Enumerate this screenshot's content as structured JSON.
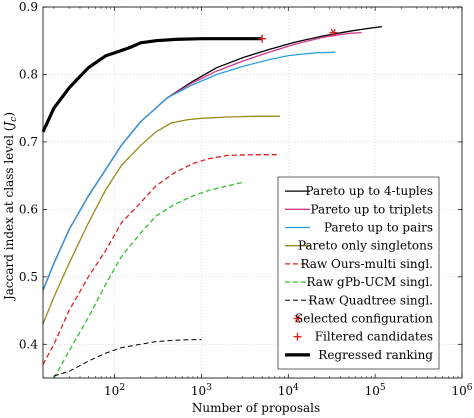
{
  "chart_data": {
    "type": "line",
    "title": "",
    "xlabel": "Number of proposals",
    "ylabel": "Jaccard index at class level (J_c)",
    "x_scale": "log",
    "xlim": [
      15,
      1000000
    ],
    "ylim": [
      0.35,
      0.9
    ],
    "x_ticks": [
      {
        "value": 100,
        "base": "10",
        "exp": "2"
      },
      {
        "value": 1000,
        "base": "10",
        "exp": "3"
      },
      {
        "value": 10000,
        "base": "10",
        "exp": "4"
      },
      {
        "value": 100000,
        "base": "10",
        "exp": "5"
      },
      {
        "value": 1000000,
        "base": "10",
        "exp": "6"
      }
    ],
    "y_ticks": [
      {
        "value": 0.4,
        "label": "0.4"
      },
      {
        "value": 0.5,
        "label": "0.5"
      },
      {
        "value": 0.6,
        "label": "0.6"
      },
      {
        "value": 0.7,
        "label": "0.7"
      },
      {
        "value": 0.8,
        "label": "0.8"
      },
      {
        "value": 0.9,
        "label": "0.9"
      }
    ],
    "grid": true,
    "legend_position": "bottom-right",
    "series": [
      {
        "name": "Pareto up to 4-tuples",
        "color": "#000000",
        "style": "solid",
        "width": 1.3,
        "x": [
          15,
          20,
          30,
          50,
          80,
          120,
          200,
          400,
          800,
          1500,
          3000,
          6000,
          12000,
          25000,
          50000,
          80000,
          120000
        ],
        "y": [
          0.48,
          0.52,
          0.57,
          0.62,
          0.66,
          0.695,
          0.73,
          0.765,
          0.79,
          0.81,
          0.825,
          0.837,
          0.848,
          0.857,
          0.864,
          0.868,
          0.871
        ]
      },
      {
        "name": "Pareto up to triplets",
        "color": "#d4388f",
        "style": "solid",
        "width": 1.3,
        "x": [
          15,
          20,
          30,
          50,
          80,
          120,
          200,
          400,
          800,
          1500,
          3000,
          6000,
          12000,
          25000,
          50000,
          70000
        ],
        "y": [
          0.48,
          0.52,
          0.57,
          0.62,
          0.66,
          0.695,
          0.73,
          0.765,
          0.788,
          0.805,
          0.82,
          0.833,
          0.845,
          0.855,
          0.861,
          0.862
        ]
      },
      {
        "name": "Pareto up to pairs",
        "color": "#2a9fe0",
        "style": "solid",
        "width": 1.3,
        "x": [
          15,
          20,
          30,
          50,
          80,
          120,
          200,
          400,
          800,
          1500,
          3000,
          6000,
          10000,
          20000,
          35000
        ],
        "y": [
          0.48,
          0.52,
          0.57,
          0.62,
          0.66,
          0.695,
          0.73,
          0.765,
          0.785,
          0.8,
          0.812,
          0.822,
          0.828,
          0.832,
          0.833
        ]
      },
      {
        "name": "Pareto only singletons",
        "color": "#9a8a1a",
        "style": "solid",
        "width": 1.3,
        "x": [
          15,
          20,
          30,
          50,
          80,
          120,
          200,
          300,
          450,
          700,
          1000,
          2000,
          4000,
          8000
        ],
        "y": [
          0.43,
          0.47,
          0.52,
          0.58,
          0.63,
          0.665,
          0.695,
          0.715,
          0.728,
          0.733,
          0.735,
          0.737,
          0.738,
          0.738
        ]
      },
      {
        "name": "Raw Ours-multi singl.",
        "color": "#e02020",
        "style": "dashed",
        "width": 1.3,
        "x": [
          15,
          20,
          30,
          50,
          80,
          120,
          200,
          300,
          500,
          800,
          1200,
          2000,
          4000,
          8000
        ],
        "y": [
          0.37,
          0.4,
          0.45,
          0.5,
          0.54,
          0.58,
          0.61,
          0.635,
          0.655,
          0.668,
          0.675,
          0.68,
          0.681,
          0.681
        ]
      },
      {
        "name": "Raw gPb-UCM singl.",
        "color": "#30c030",
        "style": "dashed",
        "width": 1.3,
        "x": [
          20,
          30,
          50,
          80,
          120,
          200,
          300,
          500,
          800,
          1200,
          2000,
          3000
        ],
        "y": [
          0.35,
          0.39,
          0.44,
          0.49,
          0.53,
          0.565,
          0.59,
          0.608,
          0.62,
          0.628,
          0.635,
          0.64
        ]
      },
      {
        "name": "Raw Quadtree singl.",
        "color": "#000000",
        "style": "dashed",
        "width": 1.0,
        "x": [
          20,
          30,
          50,
          80,
          120,
          200,
          300,
          500,
          800,
          1000
        ],
        "y": [
          0.353,
          0.36,
          0.375,
          0.387,
          0.395,
          0.4,
          0.404,
          0.406,
          0.407,
          0.407
        ]
      },
      {
        "name": "Regressed ranking",
        "color": "#000000",
        "style": "solid",
        "width": 3.2,
        "x": [
          15,
          20,
          30,
          50,
          80,
          100,
          150,
          200,
          300,
          500,
          1000,
          2000,
          5000
        ],
        "y": [
          0.715,
          0.75,
          0.78,
          0.81,
          0.828,
          0.832,
          0.84,
          0.847,
          0.85,
          0.852,
          0.853,
          0.853,
          0.853
        ]
      }
    ],
    "markers": [
      {
        "name": "Selected configuration",
        "symbol": "*",
        "color": "#e02020",
        "x": 33000,
        "y": 0.862
      },
      {
        "name": "Filtered candidates",
        "symbol": "+",
        "color": "#e02020",
        "x": 5000,
        "y": 0.853
      }
    ],
    "legend": [
      {
        "label": "Pareto up to 4-tuples",
        "kind": "line",
        "color": "#000000",
        "style": "solid",
        "width": 1.3
      },
      {
        "label": "Pareto up to triplets",
        "kind": "line",
        "color": "#d4388f",
        "style": "solid",
        "width": 1.3
      },
      {
        "label": "Pareto up to pairs",
        "kind": "line",
        "color": "#2a9fe0",
        "style": "solid",
        "width": 1.3
      },
      {
        "label": "Pareto only singletons",
        "kind": "line",
        "color": "#9a8a1a",
        "style": "solid",
        "width": 1.3
      },
      {
        "label": "Raw Ours-multi singl.",
        "kind": "line",
        "color": "#e02020",
        "style": "dashed",
        "width": 1.3
      },
      {
        "label": "Raw gPb-UCM singl.",
        "kind": "line",
        "color": "#30c030",
        "style": "dashed",
        "width": 1.3
      },
      {
        "label": "Raw Quadtree singl.",
        "kind": "line",
        "color": "#000000",
        "style": "dashed",
        "width": 1.0
      },
      {
        "label": "Selected configuration",
        "kind": "marker",
        "symbol": "*",
        "color": "#e02020"
      },
      {
        "label": "Filtered candidates",
        "kind": "marker",
        "symbol": "+",
        "color": "#e02020"
      },
      {
        "label": "Regressed ranking",
        "kind": "line",
        "color": "#000000",
        "style": "solid",
        "width": 3.2
      }
    ]
  }
}
